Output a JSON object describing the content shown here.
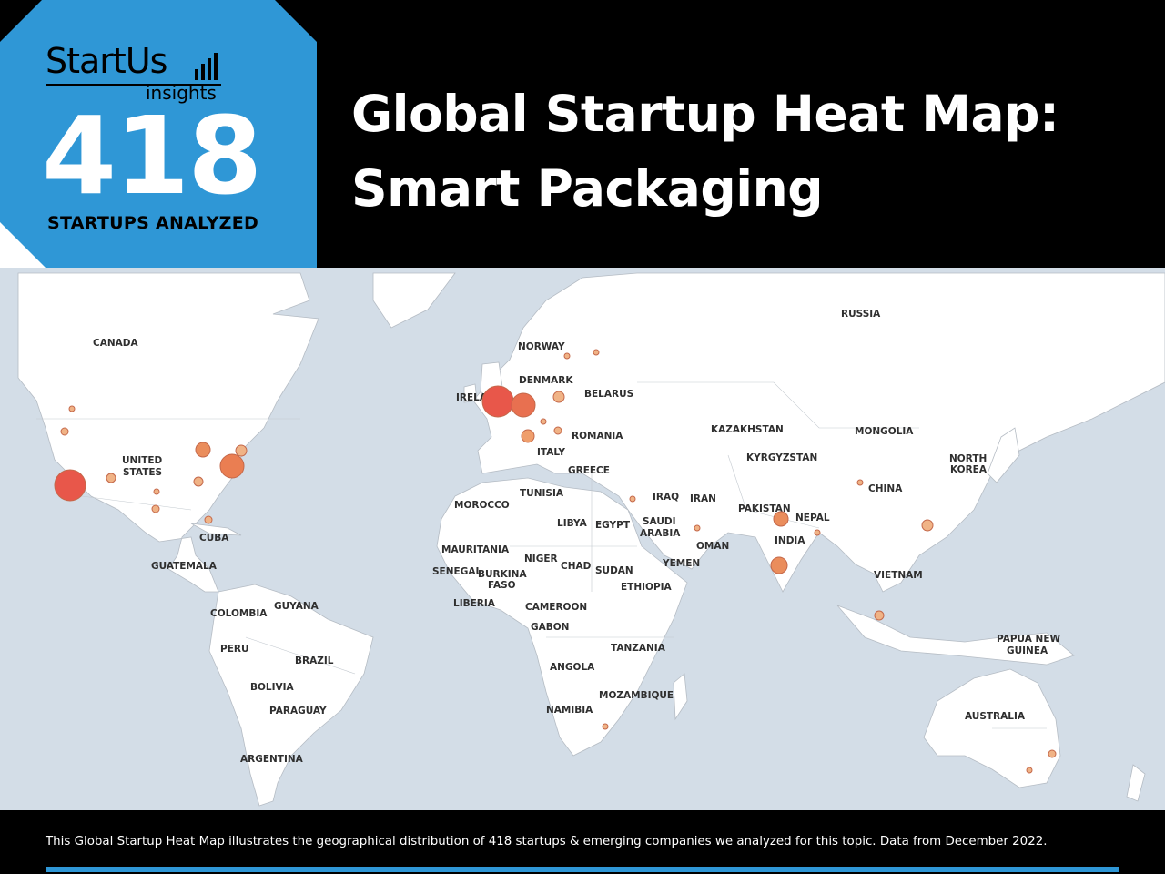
{
  "brand": {
    "name": "StartUs",
    "sub": "insights",
    "accent": "#2f97d6"
  },
  "header": {
    "count": "418",
    "count_label": "STARTUPS ANALYZED",
    "title_line1": "Global Startup Heat Map:",
    "title_line2": "Smart Packaging"
  },
  "map": {
    "ocean_color": "#d3dde7",
    "land_color": "#ffffff",
    "labels": {
      "canada": "CANADA",
      "united": "UNITED",
      "states": "STATES",
      "cuba": "CUBA",
      "guatemala": "GUATEMALA",
      "colombia": "COLOMBIA",
      "guyana": "GUYANA",
      "peru": "PERU",
      "brazil": "BRAZIL",
      "bolivia": "BOLIVIA",
      "paraguay": "PARAGUAY",
      "argentina": "ARGENTINA",
      "norway": "NORWAY",
      "denmark": "DENMARK",
      "ireland": "IRELAND",
      "belarus": "BELARUS",
      "romania": "ROMANIA",
      "italy": "ITALY",
      "greece": "GREECE",
      "russia": "RUSSIA",
      "kazakhstan": "KAZAKHSTAN",
      "kyrgyzstan": "KYRGYZSTAN",
      "mongolia": "MONGOLIA",
      "north": "NORTH",
      "korea": "KOREA",
      "china": "CHINA",
      "morocco": "MOROCCO",
      "tunisia": "TUNISIA",
      "libya": "LIBYA",
      "egypt": "EGYPT",
      "iraq": "IRAQ",
      "iran": "IRAN",
      "saudi": "SAUDI",
      "arabia": "ARABIA",
      "oman": "OMAN",
      "yemen": "YEMEN",
      "pakistan": "PAKISTAN",
      "nepal": "NEPAL",
      "india": "INDIA",
      "vietnam": "VIETNAM",
      "mauritania": "MAURITANIA",
      "niger": "NIGER",
      "chad": "CHAD",
      "sudan": "SUDAN",
      "senegal": "SENEGAL",
      "burkina": "BURKINA",
      "faso": "FASO",
      "ethiopia": "ETHIOPIA",
      "liberia": "LIBERIA",
      "cameroon": "CAMEROON",
      "gabon": "GABON",
      "tanzania": "TANZANIA",
      "angola": "ANGOLA",
      "mozambique": "MOZAMBIQUE",
      "namibia": "NAMIBIA",
      "papua": "PAPUA NEW",
      "guinea": "GUINEA",
      "australia": "AUSTRALIA"
    },
    "hotspot_colors": {
      "high": "#e8574a",
      "mid": "#ea8d5c",
      "low": "#f0b386"
    }
  },
  "footer": {
    "text": "This Global Startup Heat Map illustrates the geographical distribution of 418 startups & emerging companies we analyzed for this topic. Data from December 2022."
  }
}
